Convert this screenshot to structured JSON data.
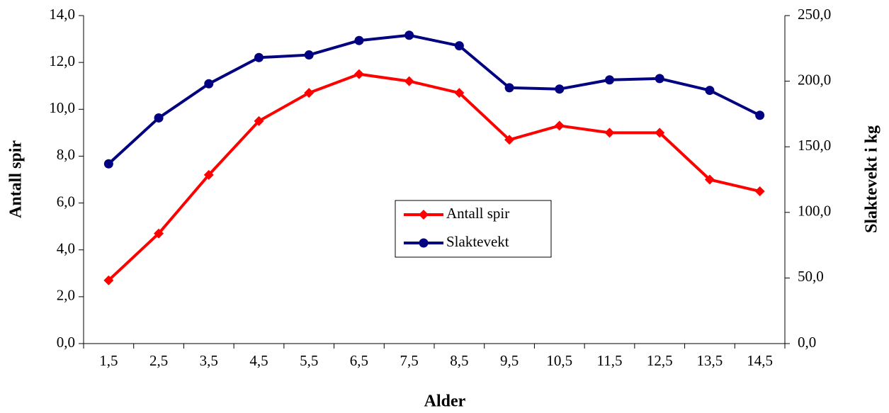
{
  "chart_data": {
    "type": "line",
    "x_label": "Alder",
    "y_label": "Antall spir",
    "y2_label": "Slaktevekt i kg",
    "categories": [
      "1,5",
      "2,5",
      "3,5",
      "4,5",
      "5,5",
      "6,5",
      "7,5",
      "8,5",
      "9,5",
      "10,5",
      "11,5",
      "12,5",
      "13,5",
      "14,5"
    ],
    "series": [
      {
        "name": "Antall spir",
        "color": "#ff0000",
        "marker": "diamond",
        "axis": "y",
        "values": [
          2.7,
          4.7,
          7.2,
          9.5,
          10.7,
          11.5,
          11.2,
          10.7,
          8.7,
          9.3,
          9.0,
          9.0,
          7.0,
          6.5
        ]
      },
      {
        "name": "Slaktevekt",
        "color": "#000080",
        "marker": "circle",
        "axis": "y2",
        "values": [
          137,
          172,
          198,
          218,
          220,
          231,
          235,
          227,
          195,
          194,
          201,
          202,
          193,
          174
        ]
      }
    ],
    "ylim": [
      0,
      14
    ],
    "yticks": [
      {
        "value": 0,
        "label": "0,0"
      },
      {
        "value": 2,
        "label": "2,0"
      },
      {
        "value": 4,
        "label": "4,0"
      },
      {
        "value": 6,
        "label": "6,0"
      },
      {
        "value": 8,
        "label": "8,0"
      },
      {
        "value": 10,
        "label": "10,0"
      },
      {
        "value": 12,
        "label": "12,0"
      },
      {
        "value": 14,
        "label": "14,0"
      }
    ],
    "y2lim": [
      0,
      250
    ],
    "y2ticks": [
      {
        "value": 0,
        "label": "0,0"
      },
      {
        "value": 50,
        "label": "50,0"
      },
      {
        "value": 100,
        "label": "100,0"
      },
      {
        "value": 150,
        "label": "150,0"
      },
      {
        "value": 200,
        "label": "200,0"
      },
      {
        "value": 250,
        "label": "250,0"
      }
    ],
    "legend": "center"
  }
}
